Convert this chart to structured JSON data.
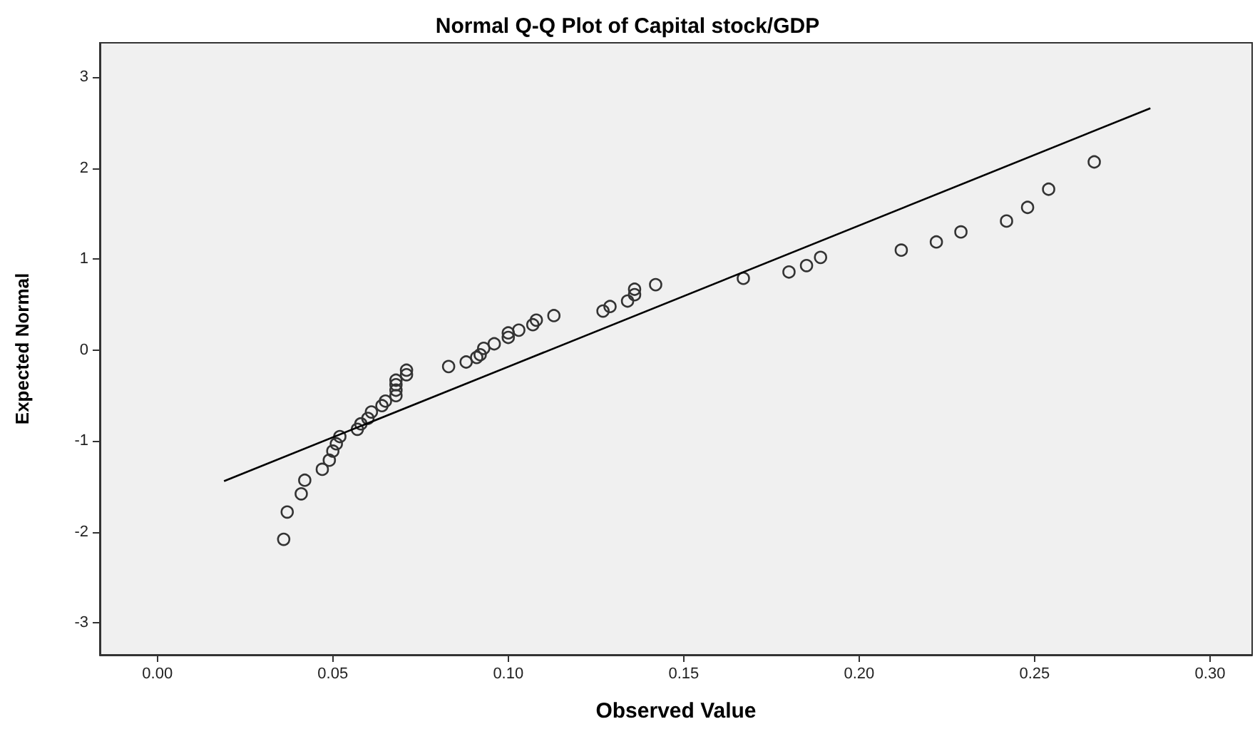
{
  "chart_data": {
    "type": "scatter",
    "title": "Normal Q-Q Plot of Capital stock/GDP",
    "xlabel": "Observed Value",
    "ylabel": "Expected Normal",
    "xlim": [
      -0.0164,
      0.312
    ],
    "ylim": [
      -3.35,
      3.38
    ],
    "xticks": [
      {
        "value": 0,
        "label": "0.00"
      },
      {
        "value": 0.05,
        "label": "0.05"
      },
      {
        "value": 0.1,
        "label": "0.10"
      },
      {
        "value": 0.15,
        "label": "0.15"
      },
      {
        "value": 0.2,
        "label": "0.20"
      },
      {
        "value": 0.25,
        "label": "0.25"
      },
      {
        "value": 0.3,
        "label": "0.30"
      }
    ],
    "yticks": [
      -3,
      -2,
      -1,
      0,
      1,
      2,
      3
    ],
    "marker": "circle",
    "series": [
      {
        "color": "#333333",
        "x": [
          0.036,
          0.037,
          0.041,
          0.042,
          0.047,
          0.049,
          0.05,
          0.051,
          0.052,
          0.057,
          0.058,
          0.06,
          0.061,
          0.064,
          0.065,
          0.068,
          0.068,
          0.068,
          0.068,
          0.071,
          0.071,
          0.083,
          0.088,
          0.091,
          0.092,
          0.093,
          0.096,
          0.1,
          0.1,
          0.103,
          0.107,
          0.108,
          0.113,
          0.127,
          0.129,
          0.134,
          0.136,
          0.136,
          0.142,
          0.167,
          0.18,
          0.185,
          0.189,
          0.212,
          0.222,
          0.229,
          0.242,
          0.248,
          0.254,
          0.267
        ],
        "values": [
          -2.08,
          -1.78,
          -1.58,
          -1.43,
          -1.31,
          -1.21,
          -1.11,
          -1.03,
          -0.95,
          -0.87,
          -0.81,
          -0.75,
          -0.68,
          -0.61,
          -0.56,
          -0.5,
          -0.44,
          -0.38,
          -0.33,
          -0.27,
          -0.22,
          -0.18,
          -0.13,
          -0.08,
          -0.05,
          0.02,
          0.07,
          0.14,
          0.19,
          0.22,
          0.28,
          0.33,
          0.38,
          0.43,
          0.48,
          0.54,
          0.61,
          0.67,
          0.72,
          0.79,
          0.86,
          0.93,
          1.02,
          1.1,
          1.19,
          1.3,
          1.42,
          1.57,
          1.77,
          2.07
        ]
      },
      {
        "type": "line",
        "marker": "none",
        "color": "#000000",
        "x": [
          0.019,
          0.283
        ],
        "values": [
          -1.44,
          2.66
        ]
      }
    ]
  }
}
